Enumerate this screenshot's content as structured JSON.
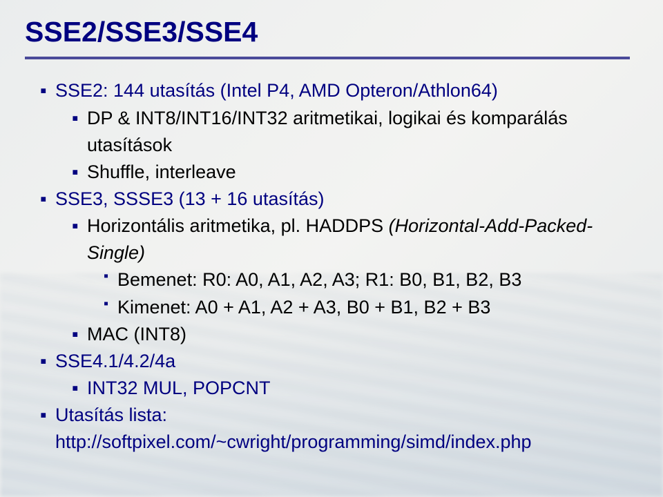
{
  "colors": {
    "title": "#000080",
    "rule": "#4a4a99",
    "bullet": "#000080",
    "body_black": "#000000",
    "body_navy": "#000080",
    "background": "#f4f4f2"
  },
  "fonts": {
    "family": "Arial",
    "title_size_pt": 30,
    "body_size_pt": 20
  },
  "title": "SSE2/SSE3/SSE4",
  "lines": [
    {
      "level": 1,
      "color": "navy",
      "italic": false,
      "text": "SSE2: 144 utasítás (Intel P4, AMD Opteron/Athlon64)"
    },
    {
      "level": 2,
      "color": "black",
      "italic": false,
      "text": "DP & INT8/INT16/INT32 aritmetikai, logikai és komparálás utasítások"
    },
    {
      "level": 2,
      "color": "black",
      "italic": false,
      "text": "Shuffle, interleave"
    },
    {
      "level": 1,
      "color": "navy",
      "italic": false,
      "text": "SSE3, SSSE3 (13 + 16 utasítás)"
    },
    {
      "level": 2,
      "color": "black",
      "italic": false,
      "text": "Horizontális aritmetika, pl. HADDPS ",
      "tail_italic": "(Horizontal-Add-Packed-Single)"
    },
    {
      "level": 3,
      "color": "black",
      "italic": false,
      "text": "Bemenet: R0: A0, A1, A2, A3; R1: B0, B1, B2, B3"
    },
    {
      "level": 3,
      "color": "black",
      "italic": false,
      "text": "Kimenet: A0 + A1, A2 + A3, B0 + B1, B2 + B3"
    },
    {
      "level": 2,
      "color": "black",
      "italic": false,
      "text": "MAC (INT8)"
    },
    {
      "level": 1,
      "color": "navy",
      "italic": false,
      "text": "SSE4.1/4.2/4a"
    },
    {
      "level": 2,
      "color": "navy",
      "italic": false,
      "text": "INT32 MUL, POPCNT"
    },
    {
      "level": 1,
      "color": "navy",
      "italic": false,
      "text": "Utasítás lista: http://softpixel.com/~cwright/programming/simd/index.php"
    }
  ]
}
